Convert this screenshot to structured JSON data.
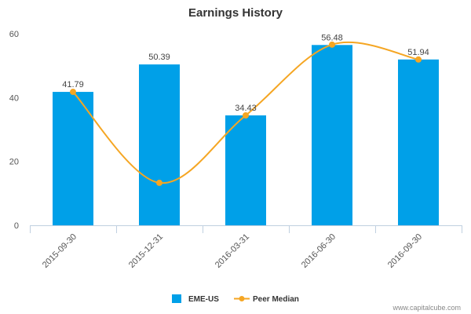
{
  "chart_data": {
    "type": "bar",
    "title": "Earnings History",
    "categories": [
      "2015-09-30",
      "2015-12-31",
      "2016-03-31",
      "2016-06-30",
      "2016-09-30"
    ],
    "series": [
      {
        "name": "EME-US",
        "type": "bar",
        "color": "#00a0e8",
        "values": [
          41.79,
          50.39,
          34.43,
          56.48,
          51.94
        ],
        "labels": [
          "41.79",
          "50.39",
          "34.43",
          "56.48",
          "51.94"
        ]
      },
      {
        "name": "Peer Median",
        "type": "line",
        "color": "#f5a623",
        "values": [
          41.79,
          13.3,
          34.43,
          56.6,
          51.94
        ]
      }
    ],
    "ylim": [
      0,
      60
    ],
    "yticks": [
      0,
      20,
      40,
      60
    ],
    "xlabel": "",
    "ylabel": "",
    "legend_position": "bottom",
    "grid": false
  },
  "watermark": "www.capitalcube.com"
}
